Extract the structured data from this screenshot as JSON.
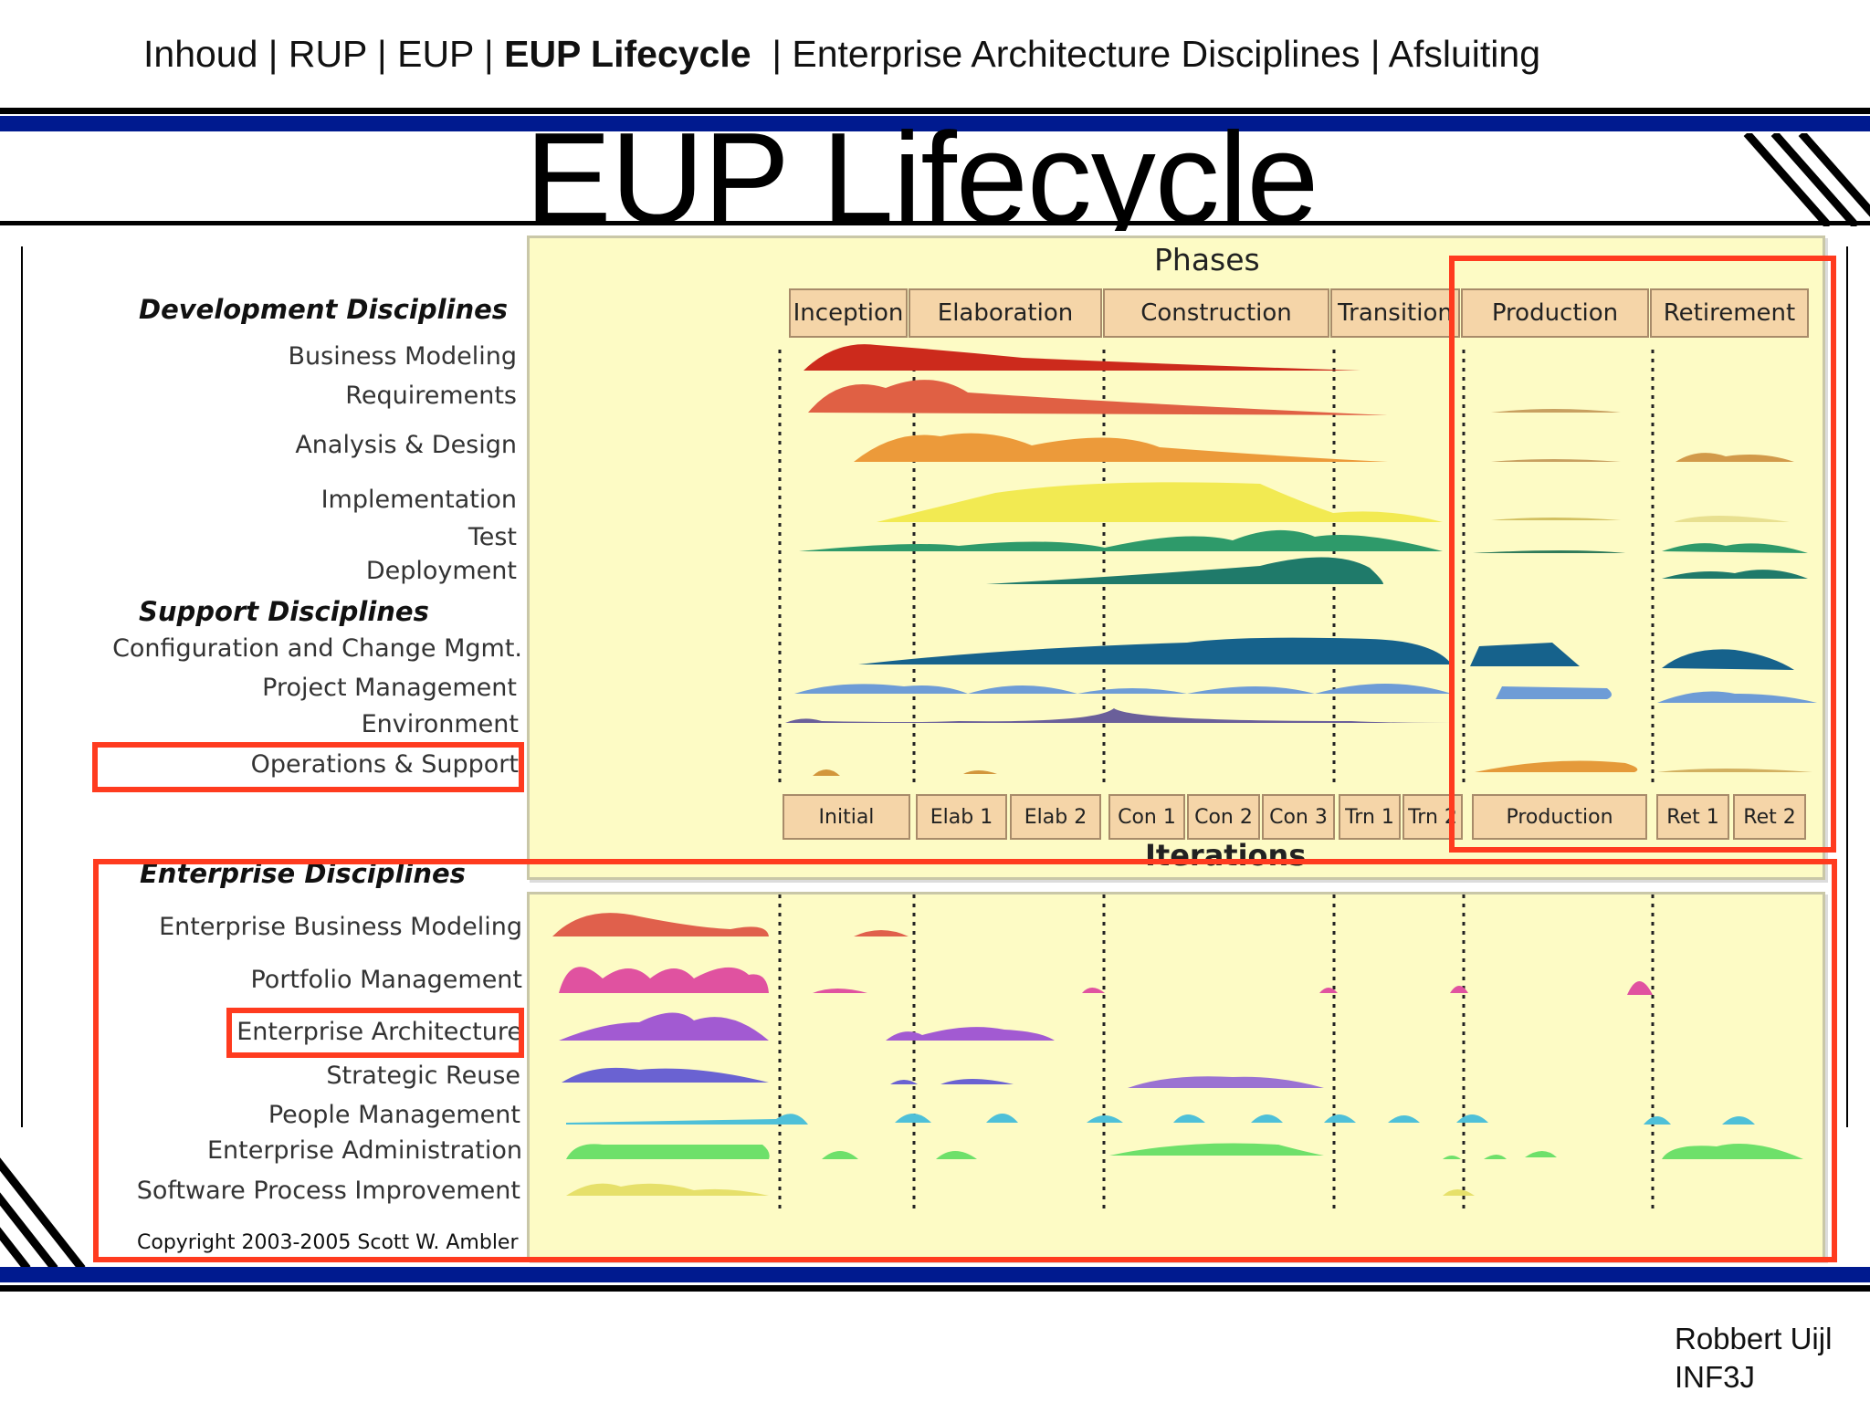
{
  "nav": {
    "items": [
      {
        "label": "Inhoud | RUP | EUP | ",
        "current": false
      },
      {
        "label": "EUP Lifecycle",
        "current": true
      },
      {
        "label": "  | Enterprise Architecture Disciplines | Afsluiting",
        "current": false
      }
    ]
  },
  "title": "EUP Lifecycle",
  "diagram": {
    "phases_title": "Phases",
    "phases": [
      "Inception",
      "Elaboration",
      "Construction",
      "Transition",
      "Production",
      "Retirement"
    ],
    "iterations_title": "Iterations",
    "iterations": [
      "Initial",
      "Elab 1",
      "Elab 2",
      "Con 1",
      "Con 2",
      "Con 3",
      "Trn 1",
      "Trn 2",
      "Production",
      "Ret 1",
      "Ret 2"
    ],
    "development_heading": "Development Disciplines",
    "development": [
      "Business Modeling",
      "Requirements",
      "Analysis & Design",
      "Implementation",
      "Test",
      "Deployment"
    ],
    "support_heading": "Support Disciplines",
    "support": [
      "Configuration and Change Mgmt.",
      "Project Management",
      "Environment",
      "Operations & Support"
    ],
    "enterprise_heading": "Enterprise Disciplines",
    "enterprise": [
      "Enterprise Business Modeling",
      "Portfolio Management",
      "Enterprise Architecture",
      "Strategic Reuse",
      "People Management",
      "Enterprise Administration",
      "Software Process Improvement"
    ],
    "copyright": "Copyright 2003-2005 Scott W. Ambler"
  },
  "colors": {
    "highlight": "#ff3b1f",
    "panel": "#fdfbc5",
    "navy": "#001a8f"
  },
  "footer": {
    "author": "Robbert Uijl",
    "class": "INF3J"
  }
}
